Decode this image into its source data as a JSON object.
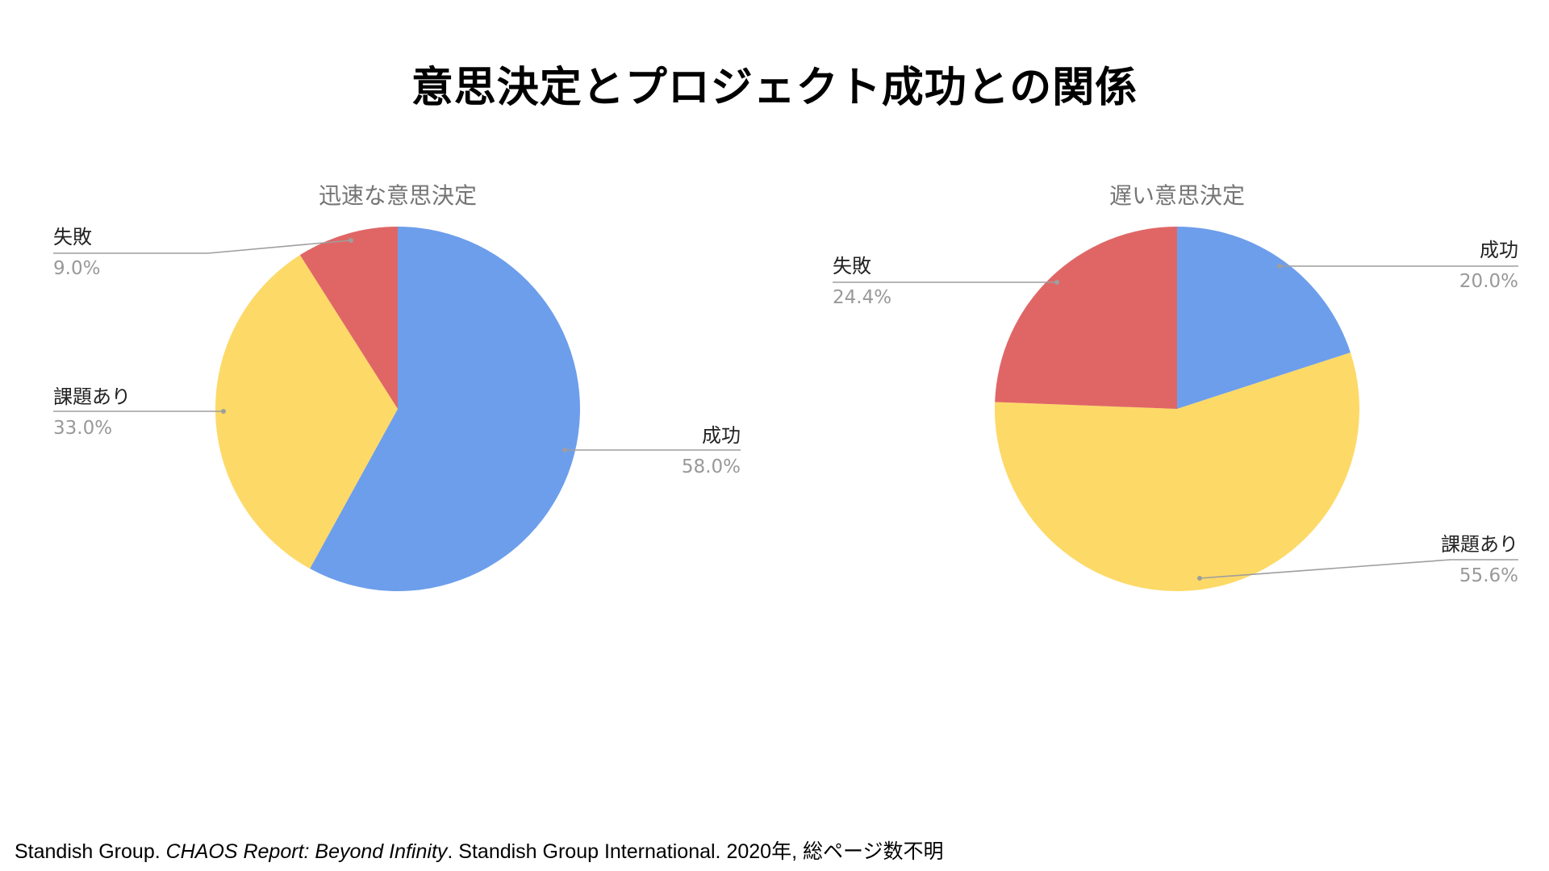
{
  "page": {
    "title": "意思決定とプロジェクト成功との関係"
  },
  "colors": {
    "success": "#6d9eeb",
    "issues": "#fdd967",
    "failure": "#e06666",
    "label_text": "#222222",
    "value_text": "#999999",
    "chart_title_text": "#757575",
    "leader_line": "#9e9e9e"
  },
  "chart_data": [
    {
      "type": "pie",
      "title": "迅速な意思決定",
      "start_angle_deg": 0,
      "direction": "clockwise",
      "slices": [
        {
          "name": "成功",
          "value": 58.0,
          "display": "58.0%",
          "color_key": "success"
        },
        {
          "name": "課題あり",
          "value": 33.0,
          "display": "33.0%",
          "color_key": "issues"
        },
        {
          "name": "失敗",
          "value": 9.0,
          "display": "9.0%",
          "color_key": "failure"
        }
      ]
    },
    {
      "type": "pie",
      "title": "遅い意思決定",
      "start_angle_deg": 0,
      "direction": "clockwise",
      "slices": [
        {
          "name": "成功",
          "value": 20.0,
          "display": "20.0%",
          "color_key": "success"
        },
        {
          "name": "課題あり",
          "value": 55.6,
          "display": "55.6%",
          "color_key": "issues"
        },
        {
          "name": "失敗",
          "value": 24.4,
          "display": "24.4%",
          "color_key": "failure"
        }
      ]
    }
  ],
  "citation": {
    "author": "Standish Group",
    "sep1": ". ",
    "work": "CHAOS Report: Beyond Infinity",
    "rest": ". Standish Group International. 2020年, 総ページ数不明"
  }
}
